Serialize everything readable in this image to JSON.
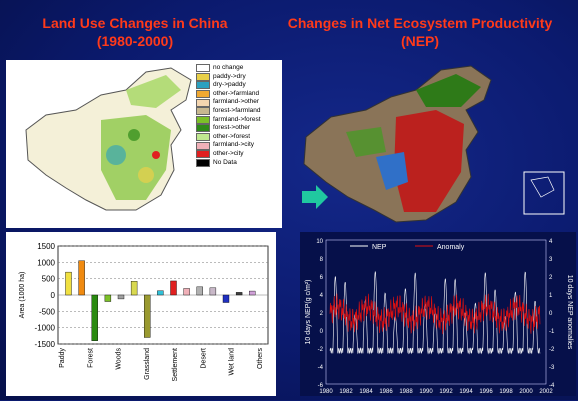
{
  "titles": {
    "left": "Land Use Changes in China",
    "left_sub": "(1980-2000)",
    "right": "Changes in Net Ecosystem Productivity",
    "right_sub": "(NEP)"
  },
  "legend": [
    {
      "label": "no change",
      "color": "#ffffff"
    },
    {
      "label": "paddy->dry",
      "color": "#e8d048"
    },
    {
      "label": "dry->paddy",
      "color": "#2aa0c0"
    },
    {
      "label": "other->farmland",
      "color": "#f0a830"
    },
    {
      "label": "farmland->other",
      "color": "#f4d6b0"
    },
    {
      "label": "forest->farmland",
      "color": "#c8b890"
    },
    {
      "label": "farmland->forest",
      "color": "#7cc028"
    },
    {
      "label": "forest->other",
      "color": "#2e8a18"
    },
    {
      "label": "other->forest",
      "color": "#c0e890"
    },
    {
      "label": "farmland->city",
      "color": "#f0b0b8"
    },
    {
      "label": "other->city",
      "color": "#e02020"
    },
    {
      "label": "No Data",
      "color": "#000000"
    }
  ],
  "chart_data": [
    {
      "type": "bar",
      "ylabel": "Area (1000 ha)",
      "ylim": [
        -1500,
        1500
      ],
      "yticks": [
        "1500",
        "1000",
        "500",
        "0",
        "-500",
        "-1000",
        "-1500"
      ],
      "category_labels": [
        "Paddy",
        "Forest",
        "Woods",
        "Grassland",
        "Settlement",
        "Desert",
        "Wet land",
        "Others"
      ],
      "bars": [
        {
          "value": 700,
          "color": "#f0e040"
        },
        {
          "value": 1050,
          "color": "#f08a10"
        },
        {
          "value": -1400,
          "color": "#2a8a10"
        },
        {
          "value": -200,
          "color": "#7cc028"
        },
        {
          "value": -120,
          "color": "#a0a0a0"
        },
        {
          "value": 420,
          "color": "#d8d850"
        },
        {
          "value": -1300,
          "color": "#9a9a30"
        },
        {
          "value": 130,
          "color": "#30c0d8"
        },
        {
          "value": 430,
          "color": "#e02020"
        },
        {
          "value": 200,
          "color": "#f0b0b8"
        },
        {
          "value": 250,
          "color": "#b0b0b0"
        },
        {
          "value": 220,
          "color": "#c8b8c8"
        },
        {
          "value": -230,
          "color": "#2030c0"
        },
        {
          "value": 80,
          "color": "#404040"
        },
        {
          "value": 120,
          "color": "#d0a0d8"
        }
      ]
    },
    {
      "type": "line",
      "series": [
        {
          "name": "NEP",
          "color": "#ffffff"
        },
        {
          "name": "Anomaly",
          "color": "#e01010"
        }
      ],
      "x_ticks": [
        "1980",
        "1982",
        "1984",
        "1986",
        "1988",
        "1990",
        "1992",
        "1994",
        "1996",
        "1998",
        "2000",
        "2002"
      ],
      "y_left_ticks": [
        "10",
        "8",
        "6",
        "4",
        "2",
        "0",
        "-2",
        "-4",
        "-6"
      ],
      "y_right_ticks": [
        "4",
        "3",
        "2",
        "1",
        "0",
        "-1",
        "-2",
        "-3",
        "-4"
      ],
      "ylabel_left": "10 days NEP(g c/m²)",
      "ylabel_right": "10 days NEP anomalies",
      "ylim_left": [
        -6,
        10
      ],
      "xlim": [
        1980,
        2002
      ]
    }
  ],
  "colors": {
    "title": "#ff3a1a",
    "background": "#0b1a6e",
    "arrow": "#20c8a0"
  }
}
